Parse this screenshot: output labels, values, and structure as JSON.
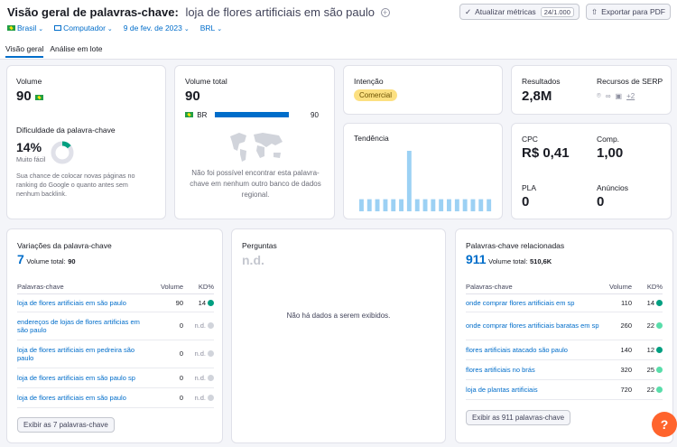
{
  "header": {
    "title": "Visão geral de palavras-chave:",
    "keyword": "loja de flores artificiais em são paulo",
    "update_label": "Atualizar métricas",
    "update_count": "24/1.000",
    "export_label": "Exportar para PDF"
  },
  "filters": {
    "country": "Brasil",
    "device": "Computador",
    "date": "9 de fev. de 2023",
    "currency": "BRL"
  },
  "tabs": [
    {
      "label": "Visão geral",
      "active": true
    },
    {
      "label": "Análise em lote",
      "active": false
    }
  ],
  "volume": {
    "label": "Volume",
    "value": "90"
  },
  "difficulty": {
    "label": "Dificuldade da palavra-chave",
    "value": "14%",
    "level": "Muito fácil",
    "percent": 14,
    "description": "Sua chance de colocar novas páginas no ranking do Google o quanto antes sem nenhum backlink."
  },
  "total_volume": {
    "label": "Volume total",
    "value": "90",
    "country_code": "BR",
    "country_value": "90",
    "map_note": "Não foi possível encontrar esta palavra-chave em nenhum outro banco de dados regional."
  },
  "intent": {
    "label": "Intenção",
    "badge": "Comercial"
  },
  "trend": {
    "label": "Tendência",
    "values": [
      0.2,
      0.2,
      0.2,
      0.2,
      0.2,
      0.2,
      1.0,
      0.2,
      0.2,
      0.2,
      0.2,
      0.2,
      0.2,
      0.2,
      0.2,
      0.2,
      0.2
    ]
  },
  "results": {
    "label": "Resultados",
    "value": "2,8M",
    "serp_label": "Recursos de SERP",
    "serp_more": "+2"
  },
  "metrics": {
    "cpc_label": "CPC",
    "cpc_value": "R$ 0,41",
    "comp_label": "Comp.",
    "comp_value": "1,00",
    "pla_label": "PLA",
    "pla_value": "0",
    "ads_label": "Anúncios",
    "ads_value": "0"
  },
  "variations": {
    "title": "Variações da palavra-chave",
    "count": "7",
    "total_label": "Volume total:",
    "total_value": "90",
    "col_keyword": "Palavras-chave",
    "col_volume": "Volume",
    "col_kd": "KD%",
    "rows": [
      {
        "keyword": "loja de flores artificiais em são paulo",
        "volume": "90",
        "kd": "14",
        "color": "#009f81"
      },
      {
        "keyword": "endereços de lojas de flores artificias em são paulo",
        "volume": "0",
        "kd": "n.d.",
        "color": "#d1d4db"
      },
      {
        "keyword": "loja de flores artificiais em pedreira são paulo",
        "volume": "0",
        "kd": "n.d.",
        "color": "#d1d4db"
      },
      {
        "keyword": "loja de flores artificiais em são paulo sp",
        "volume": "0",
        "kd": "n.d.",
        "color": "#d1d4db"
      },
      {
        "keyword": "loja de flores artificiais em são paulo",
        "volume": "0",
        "kd": "n.d.",
        "color": "#d1d4db"
      }
    ],
    "button": "Exibir as 7 palavras-chave"
  },
  "questions": {
    "title": "Perguntas",
    "value": "n.d.",
    "empty": "Não há dados a serem exibidos."
  },
  "related": {
    "title": "Palavras-chave relacionadas",
    "count": "911",
    "total_label": "Volume total:",
    "total_value": "510,6K",
    "col_keyword": "Palavras-chave",
    "col_volume": "Volume",
    "col_kd": "KD%",
    "rows": [
      {
        "keyword": "onde comprar flores artificiais em sp",
        "volume": "110",
        "kd": "14",
        "color": "#009f81"
      },
      {
        "keyword": "onde comprar flores artificiais baratas em sp",
        "volume": "260",
        "kd": "22",
        "color": "#59ddaa"
      },
      {
        "keyword": "flores artificiais atacado são paulo",
        "volume": "140",
        "kd": "12",
        "color": "#009f81"
      },
      {
        "keyword": "flores artificiais no brás",
        "volume": "320",
        "kd": "25",
        "color": "#59ddaa"
      },
      {
        "keyword": "loja de plantas artificiais",
        "volume": "720",
        "kd": "22",
        "color": "#59ddaa"
      }
    ],
    "button": "Exibir as 911 palavras-chave"
  },
  "help": {
    "label": "?"
  }
}
